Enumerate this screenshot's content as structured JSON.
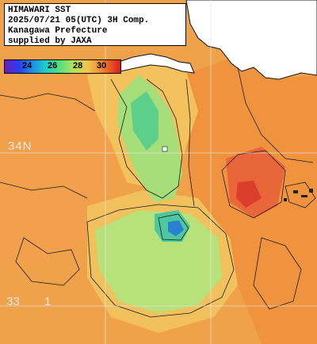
{
  "title_box": {
    "line1": "HIMAWARI SST",
    "line2": "2025/07/21 05(UTC) 3H Comp.",
    "line3": "Kanagawa Prefecture",
    "line4": "supplied by JAXA"
  },
  "color_scale": {
    "ticks": [
      "24",
      "26",
      "28",
      "30"
    ]
  },
  "grid_labels": {
    "lat_top": "34N",
    "lat_bottom": "33",
    "lon_bottom": "1"
  },
  "colors": {
    "warm_sea": "#f08c3c",
    "mid_sea": "#f3b35a",
    "cool_sea": "#a8e27a",
    "cold_sea": "#4ccf8a",
    "hot_spot": "#e24a2a",
    "land": "#ffffff",
    "contour": "#1a1a1a"
  }
}
